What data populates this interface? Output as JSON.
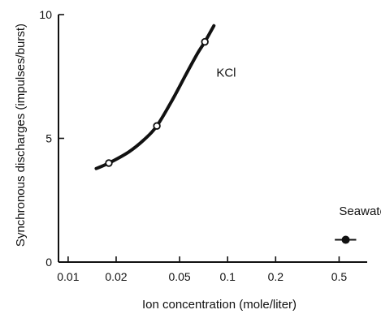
{
  "chart_data": {
    "type": "line",
    "xlabel": "Ion concentration (mole/liter)",
    "ylabel": "Synchronous discharges (impulses/burst)",
    "xscale": "log",
    "xlim": [
      0.0087,
      0.75
    ],
    "ylim": [
      0,
      10
    ],
    "xticks": [
      {
        "value": 0.01,
        "label": "0.01"
      },
      {
        "value": 0.02,
        "label": "0.02"
      },
      {
        "value": 0.05,
        "label": "0.05"
      },
      {
        "value": 0.1,
        "label": "0.1"
      },
      {
        "value": 0.2,
        "label": "0.2"
      },
      {
        "value": 0.5,
        "label": "0.5"
      }
    ],
    "yticks": [
      {
        "value": 0,
        "label": "0"
      },
      {
        "value": 5,
        "label": "5"
      },
      {
        "value": 10,
        "label": "10"
      }
    ],
    "grid": false,
    "series": [
      {
        "name": "KCl",
        "marker": "open-circle",
        "points": [
          {
            "x": 0.018,
            "y": 4.0
          },
          {
            "x": 0.036,
            "y": 5.5
          },
          {
            "x": 0.072,
            "y": 8.9
          }
        ],
        "curve": [
          {
            "x": 0.015,
            "y": 3.78
          },
          {
            "x": 0.018,
            "y": 4.0
          },
          {
            "x": 0.024,
            "y": 4.45
          },
          {
            "x": 0.03,
            "y": 4.95
          },
          {
            "x": 0.036,
            "y": 5.5
          },
          {
            "x": 0.045,
            "y": 6.55
          },
          {
            "x": 0.055,
            "y": 7.6
          },
          {
            "x": 0.065,
            "y": 8.45
          },
          {
            "x": 0.072,
            "y": 8.9
          },
          {
            "x": 0.082,
            "y": 9.55
          }
        ],
        "color": "#111111"
      },
      {
        "name": "Seawater",
        "marker": "filled-circle",
        "points": [
          {
            "x": 0.55,
            "y": 0.9
          }
        ],
        "segment": [
          {
            "x": 0.47,
            "y": 0.9
          },
          {
            "x": 0.64,
            "y": 0.9
          }
        ],
        "color": "#111111"
      }
    ],
    "annotations": [
      {
        "text": "KCl",
        "x": 0.085,
        "y": 7.5
      },
      {
        "text": "Seawater",
        "x": 0.5,
        "y": 1.9
      }
    ]
  }
}
